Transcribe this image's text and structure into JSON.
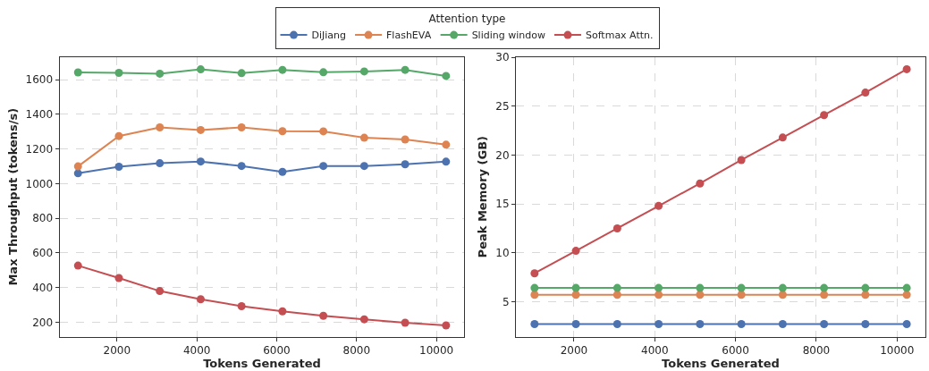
{
  "chart_data": [
    {
      "type": "line",
      "xlabel": "Tokens Generated",
      "ylabel": "Max Throughput (tokens/s)",
      "legend_title": "Attention type",
      "legend": "top",
      "grid": true,
      "marker": "circle",
      "line_style": "solid",
      "x": [
        1024,
        2048,
        3072,
        4096,
        5120,
        6144,
        7168,
        8192,
        9216,
        10240
      ],
      "xlim": [
        563,
        10701
      ],
      "xticks": [
        2000,
        4000,
        6000,
        8000,
        10000
      ],
      "ylim": [
        116,
        1732
      ],
      "yticks": [
        200,
        400,
        600,
        800,
        1000,
        1200,
        1400,
        1600
      ],
      "series": [
        {
          "name": "DiJiang",
          "color": "#4c72b0",
          "values": [
            1060,
            1098,
            1118,
            1128,
            1102,
            1068,
            1102,
            1102,
            1112,
            1127
          ]
        },
        {
          "name": "FlashEVA",
          "color": "#dd8452",
          "values": [
            1100,
            1275,
            1325,
            1310,
            1325,
            1303,
            1302,
            1265,
            1255,
            1225
          ]
        },
        {
          "name": "Sliding window",
          "color": "#55a868",
          "values": [
            1642,
            1640,
            1635,
            1660,
            1638,
            1657,
            1643,
            1648,
            1657,
            1622
          ]
        },
        {
          "name": "Softmax Attn.",
          "color": "#c44e52",
          "values": [
            527,
            455,
            380,
            333,
            293,
            263,
            237,
            217,
            197,
            182
          ]
        }
      ]
    },
    {
      "type": "line",
      "xlabel": "Tokens Generated",
      "ylabel": "Peak Memory (GB)",
      "legend": "top",
      "grid": true,
      "marker": "circle",
      "line_style": "solid",
      "x": [
        1024,
        2048,
        3072,
        4096,
        5120,
        6144,
        7168,
        8192,
        9216,
        10240
      ],
      "xlim": [
        563,
        10701
      ],
      "xticks": [
        2000,
        4000,
        6000,
        8000,
        10000
      ],
      "ylim": [
        1.4,
        30.06
      ],
      "yticks": [
        5,
        10,
        15,
        20,
        25,
        30
      ],
      "series": [
        {
          "color": "#4c72b0",
          "values": [
            2.7,
            2.7,
            2.7,
            2.7,
            2.7,
            2.7,
            2.7,
            2.7,
            2.7,
            2.7
          ]
        },
        {
          "color": "#dd8452",
          "values": [
            5.7,
            5.7,
            5.7,
            5.7,
            5.7,
            5.7,
            5.7,
            5.7,
            5.7,
            5.7
          ]
        },
        {
          "color": "#55a868",
          "values": [
            6.4,
            6.4,
            6.4,
            6.4,
            6.4,
            6.4,
            6.4,
            6.4,
            6.4,
            6.4
          ]
        },
        {
          "color": "#c44e52",
          "values": [
            7.9,
            10.2,
            12.5,
            14.8,
            17.1,
            19.5,
            21.8,
            24.1,
            26.4,
            28.8
          ]
        }
      ]
    }
  ]
}
